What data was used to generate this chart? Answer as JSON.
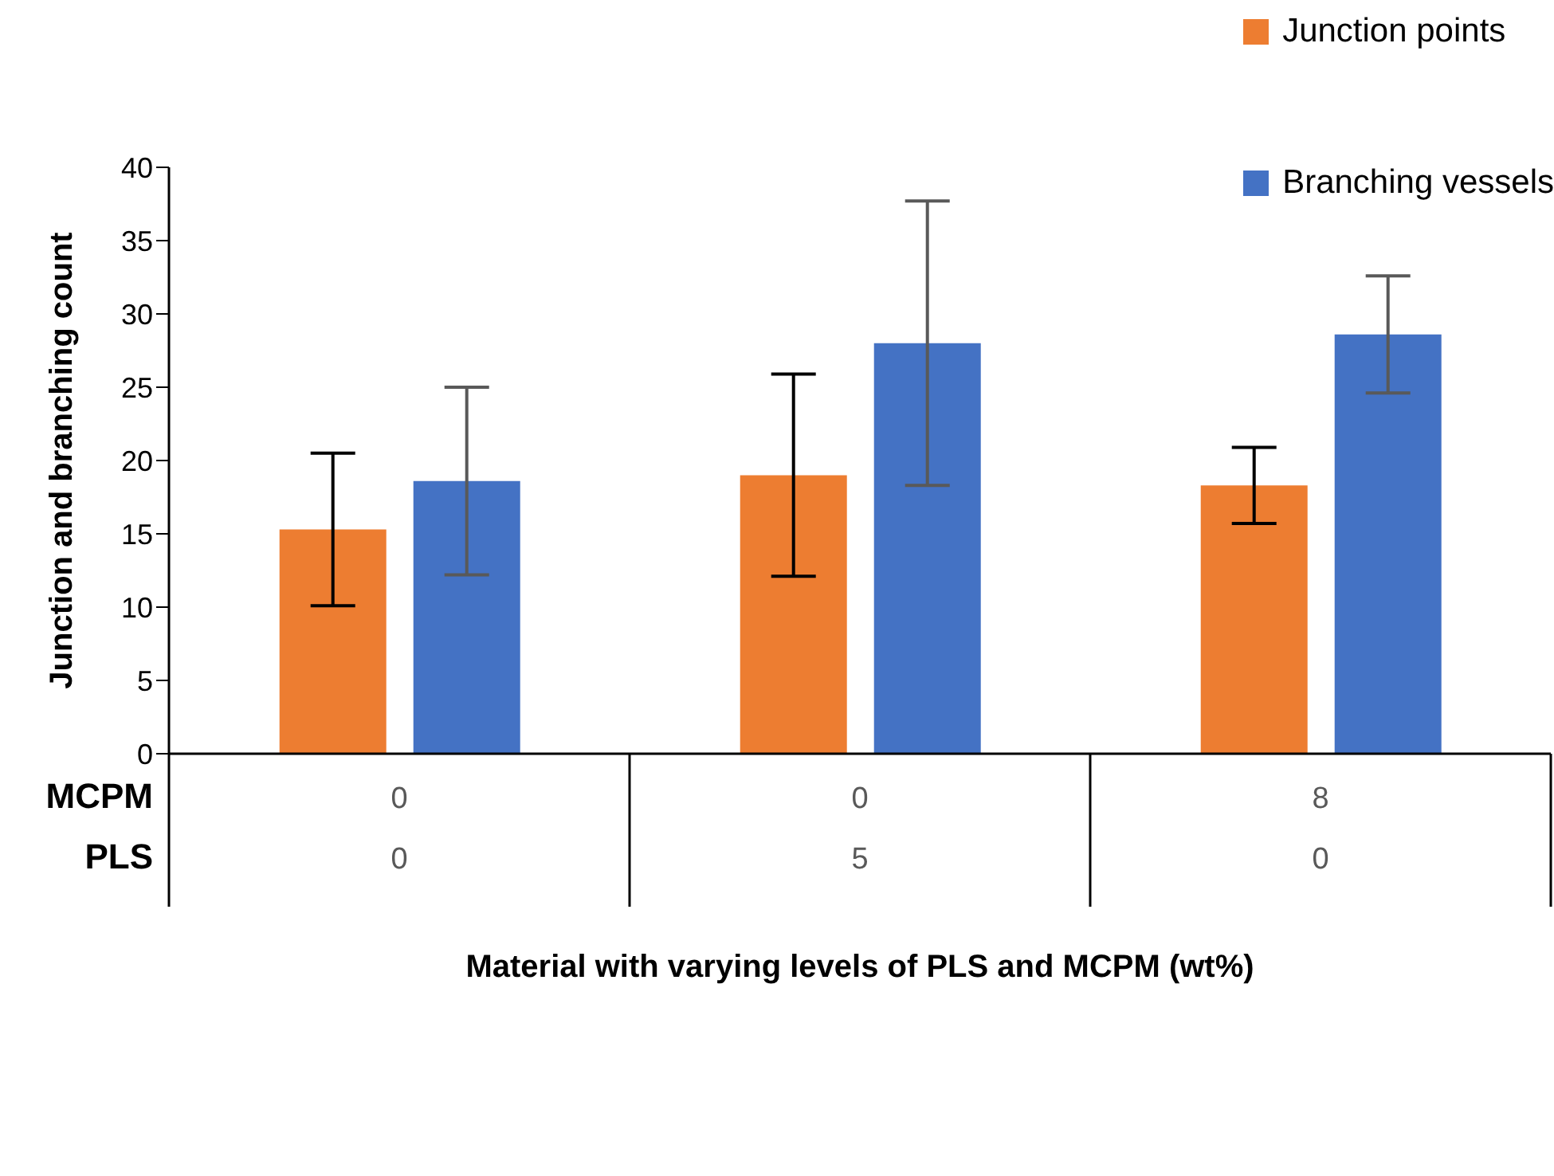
{
  "chart_data": {
    "type": "bar",
    "xlabel": "Material with varying levels of PLS and MCPM (wt%)",
    "ylabel": "Junction and  branching count",
    "categories": [
      "0\n0",
      "0\n5",
      "8\n0"
    ],
    "annotations": [
      "MCPM",
      "PLS"
    ],
    "series": [
      {
        "name": "Junction points",
        "color": "#ed7d31",
        "values": [
          15.3,
          19.0,
          18.3
        ],
        "errors": [
          5.2,
          6.9,
          2.6
        ]
      },
      {
        "name": "Branching vessels",
        "color": "#4472c4",
        "values": [
          18.6,
          28.0,
          28.6
        ],
        "errors": [
          6.4,
          9.7,
          4.0
        ]
      }
    ],
    "ylim": [
      0,
      40
    ],
    "yticks": [
      0,
      5,
      10,
      15,
      20,
      25,
      30,
      35,
      40
    ],
    "grid": false,
    "legend": "top right"
  }
}
